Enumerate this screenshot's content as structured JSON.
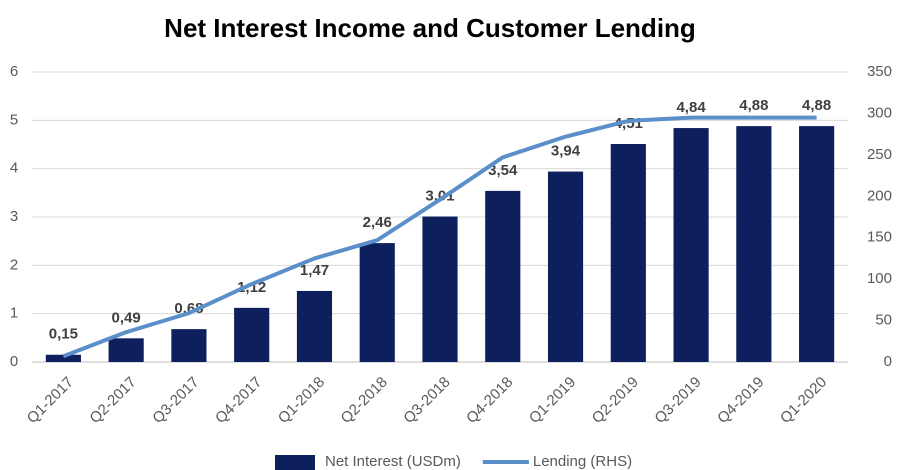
{
  "chart_data": {
    "type": "bar-line",
    "title": "Net Interest Income and Customer Lending",
    "categories": [
      "Q1-2017",
      "Q2-2017",
      "Q3-2017",
      "Q4-2017",
      "Q1-2018",
      "Q2-2018",
      "Q3-2018",
      "Q4-2018",
      "Q1-2019",
      "Q2-2019",
      "Q3-2019",
      "Q4-2019",
      "Q1-2020"
    ],
    "series": [
      {
        "name": "Net Interest (USDm)",
        "type": "bar",
        "color": "#0d1f5c",
        "values": [
          0.15,
          0.49,
          0.68,
          1.12,
          1.47,
          2.46,
          3.01,
          3.54,
          3.94,
          4.51,
          4.84,
          4.88,
          4.88
        ],
        "value_labels": [
          "0,15",
          "0,49",
          "0,68",
          "1,12",
          "1,47",
          "2,46",
          "3,01",
          "3,54",
          "3,94",
          "4,51",
          "4,84",
          "4,88",
          "4,88"
        ]
      },
      {
        "name": "Lending (RHS)",
        "type": "line",
        "axis": "y2",
        "color": "#5b8fc9",
        "values": [
          7,
          36,
          59,
          94,
          125,
          147,
          196,
          247,
          272,
          291,
          295,
          295,
          295
        ]
      }
    ],
    "ylim": [
      0,
      6
    ],
    "yticks": [
      0,
      1,
      2,
      3,
      4,
      5,
      6
    ],
    "y2lim": [
      0,
      350
    ],
    "y2ticks": [
      0,
      50,
      100,
      150,
      200,
      250,
      300,
      350
    ],
    "grid": true,
    "legend": "bottom"
  }
}
